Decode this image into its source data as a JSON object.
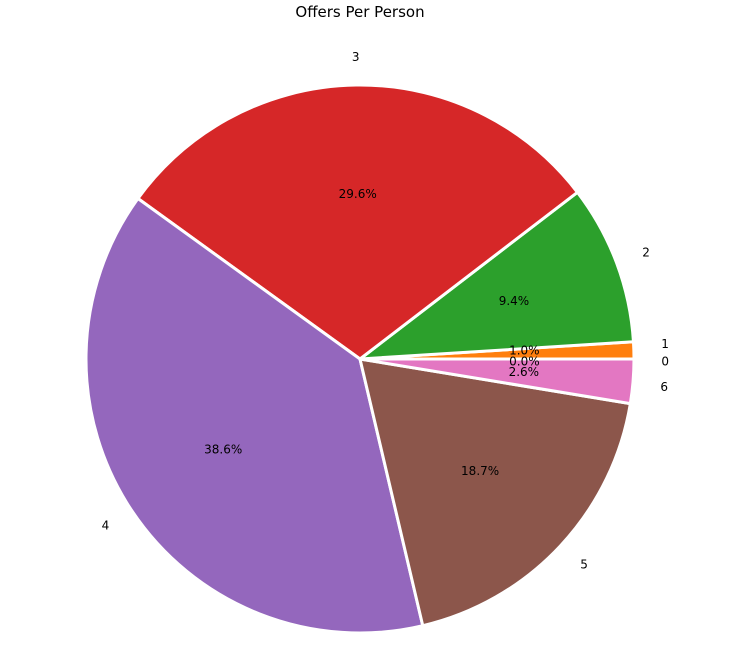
{
  "chart_data": {
    "type": "pie",
    "title": "Offers Per Person",
    "start_angle_deg": 0,
    "direction": "counterclockwise",
    "slices": [
      {
        "label": "0",
        "value": 0.0,
        "pct_label": "0.0%",
        "color": "#1f77b4"
      },
      {
        "label": "1",
        "value": 1.0,
        "pct_label": "1.0%",
        "color": "#ff7f0e"
      },
      {
        "label": "2",
        "value": 9.4,
        "pct_label": "9.4%",
        "color": "#2ca02c"
      },
      {
        "label": "3",
        "value": 29.6,
        "pct_label": "29.6%",
        "color": "#d62728"
      },
      {
        "label": "4",
        "value": 38.6,
        "pct_label": "38.6%",
        "color": "#9467bd"
      },
      {
        "label": "5",
        "value": 18.7,
        "pct_label": "18.7%",
        "color": "#8c564b"
      },
      {
        "label": "6",
        "value": 2.6,
        "pct_label": "2.6%",
        "color": "#e377c2"
      }
    ]
  }
}
